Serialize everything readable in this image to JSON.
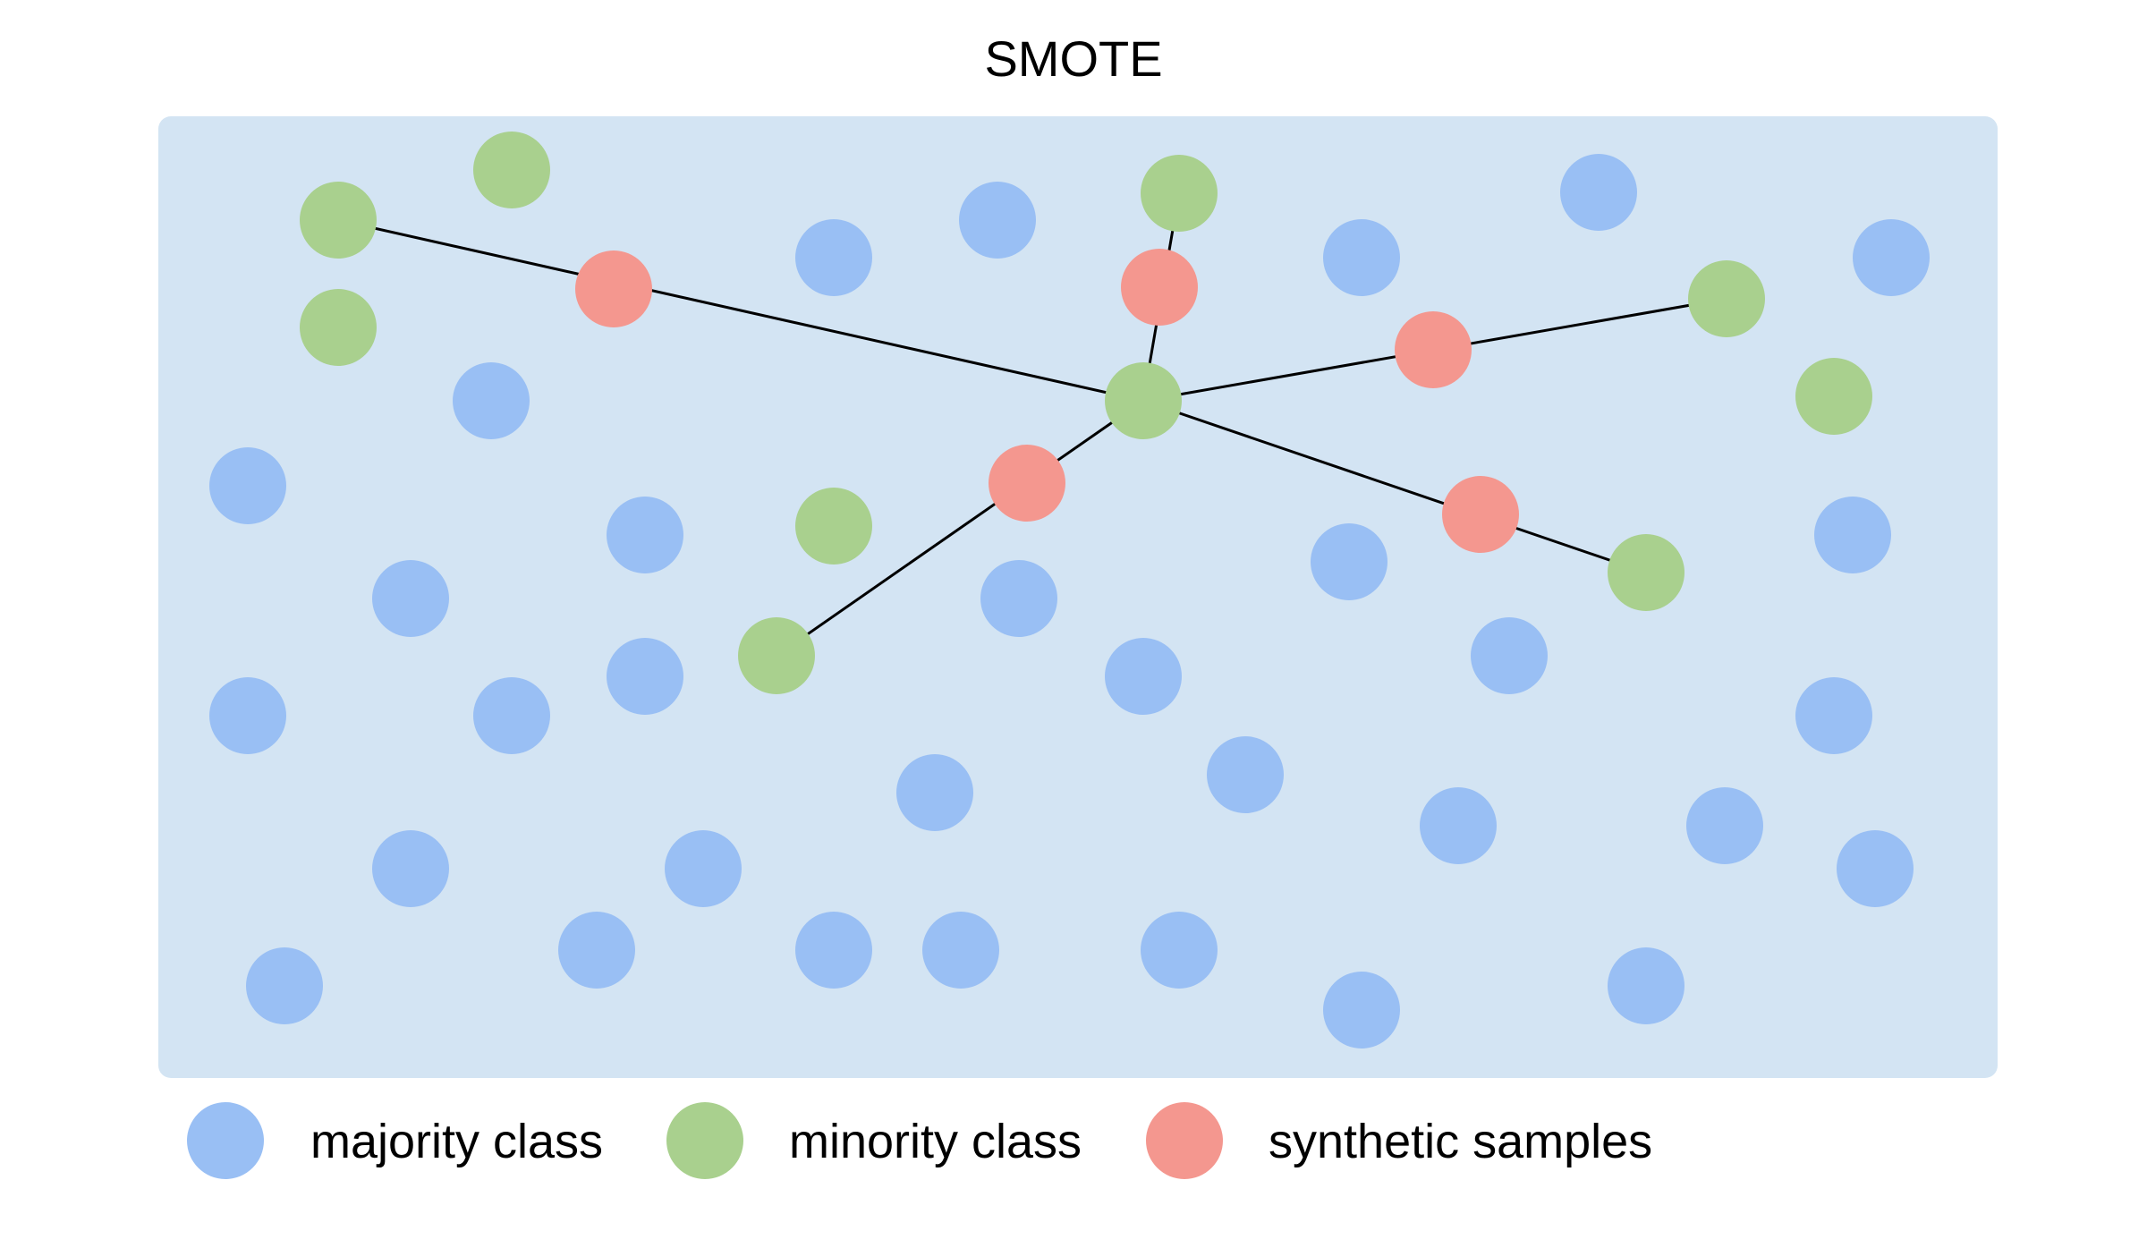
{
  "title": "SMOTE",
  "colors": {
    "panel_background": "#d3e4f3",
    "majority": "#99bff4",
    "minority": "#a9d08e",
    "synthetic": "#f4978f",
    "line": "#000000"
  },
  "legend": {
    "majority": "majority class",
    "minority": "minority class",
    "synthetic": "synthetic samples"
  }
}
